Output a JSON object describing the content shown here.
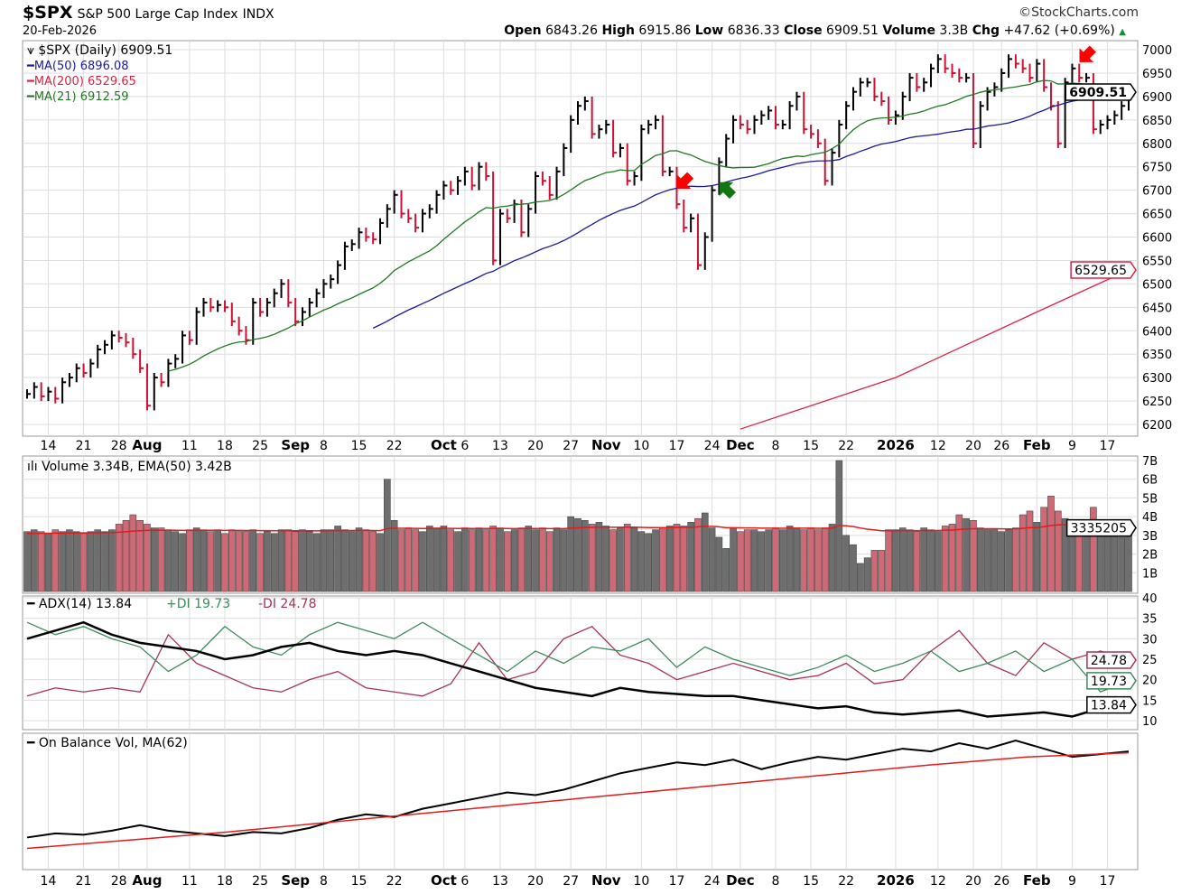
{
  "header": {
    "symbol": "$SPX",
    "name": "S&P 500 Large Cap Index",
    "exchange": "INDX",
    "date": "20-Feb-2026",
    "brand": "©StockCharts.com",
    "open_label": "Open",
    "open": "6843.26",
    "high_label": "High",
    "high": "6915.86",
    "low_label": "Low",
    "low": "6836.33",
    "close_label": "Close",
    "close": "6909.51",
    "volume_label": "Volume",
    "volume": "3.3B",
    "chg_label": "Chg",
    "chg": "+47.62 (+0.69%)"
  },
  "colors": {
    "up": "#000000",
    "down": "#cc1133",
    "ma50": "#1a1a99",
    "ma200": "#dd2244",
    "ma21": "#227722",
    "vol_up": "#6e6e6e",
    "vol_down": "#cd6a75",
    "vol_ema": "#e21b1b",
    "adx": "#000000",
    "plus_di": "#3c8a5a",
    "minus_di": "#a83254",
    "obv": "#000000",
    "obv_ma": "#e21b1b",
    "grid": "#dddddd"
  },
  "chart_data": [
    {
      "type": "bar",
      "panel": "price",
      "legend": {
        "title": "$SPX (Daily) 6909.51",
        "ma50": "MA(50) 6896.08",
        "ma200": "MA(200) 6529.65",
        "ma21": "MA(21) 6912.59"
      },
      "last_price_tag": "6909.51",
      "ma200_tag": "6529.65",
      "yticks": [
        7000,
        6950,
        6900,
        6850,
        6800,
        6750,
        6700,
        6650,
        6600,
        6550,
        6500,
        6450,
        6400,
        6350,
        6300,
        6250,
        6200
      ],
      "ylim": [
        6200,
        7000
      ],
      "grid": true,
      "months": [
        {
          "month": "Jul",
          "days": [
            9,
            10,
            11,
            14,
            15,
            16,
            17,
            18,
            21,
            22,
            23,
            24,
            25,
            28,
            29,
            30,
            31
          ],
          "close": [
            6265,
            6280,
            6260,
            6270,
            6255,
            6290,
            6300,
            6320,
            6310,
            6330,
            6360,
            6370,
            6390,
            6385,
            6375,
            6350,
            6320
          ],
          "volume": [
            3.2,
            3.3,
            3.2,
            3.1,
            3.3,
            3.2,
            3.3,
            3.2,
            3.1,
            3.2,
            3.3,
            3.2,
            3.3,
            3.6,
            3.8,
            4.1,
            3.8
          ]
        },
        {
          "month": "Aug",
          "days": [
            1,
            4,
            5,
            6,
            7,
            8,
            11,
            12,
            13,
            14,
            15,
            18,
            19,
            20,
            21,
            22,
            25,
            26,
            27,
            28,
            29
          ],
          "close": [
            6240,
            6300,
            6290,
            6330,
            6340,
            6390,
            6380,
            6440,
            6460,
            6450,
            6455,
            6450,
            6420,
            6400,
            6380,
            6460,
            6440,
            6460,
            6480,
            6500,
            6460
          ],
          "volume": [
            3.6,
            3.4,
            3.4,
            3.3,
            3.2,
            3.1,
            3.3,
            3.4,
            3.3,
            3.2,
            3.3,
            3.1,
            3.3,
            3.2,
            3.2,
            3.3,
            3.1,
            3.2,
            3.1,
            3.3,
            3.3
          ]
        },
        {
          "month": "Sep",
          "days": [
            2,
            3,
            4,
            5,
            8,
            9,
            10,
            11,
            12,
            15,
            16,
            17,
            18,
            19,
            22,
            23,
            24,
            25,
            26,
            29,
            30
          ],
          "close": [
            6420,
            6440,
            6460,
            6480,
            6500,
            6510,
            6540,
            6580,
            6585,
            6610,
            6600,
            6595,
            6630,
            6660,
            6690,
            6650,
            6640,
            6620,
            6650,
            6660,
            6690
          ],
          "volume": [
            3.2,
            3.3,
            3.2,
            3.1,
            3.3,
            3.3,
            3.5,
            3.3,
            3.2,
            3.4,
            3.3,
            3.2,
            3.1,
            6.0,
            3.8,
            3.3,
            3.4,
            3.3,
            3.2,
            3.5,
            3.4
          ]
        },
        {
          "month": "Oct",
          "days": [
            1,
            2,
            3,
            6,
            7,
            8,
            9,
            10,
            13,
            14,
            15,
            16,
            17,
            20,
            21,
            22,
            23,
            24,
            27,
            28,
            29,
            30,
            31
          ],
          "close": [
            6710,
            6700,
            6720,
            6740,
            6710,
            6750,
            6730,
            6550,
            6650,
            6640,
            6670,
            6610,
            6660,
            6730,
            6720,
            6690,
            6740,
            6790,
            6850,
            6880,
            6890,
            6820,
            6830
          ],
          "volume": [
            3.5,
            3.3,
            3.2,
            3.4,
            3.3,
            3.4,
            3.3,
            3.5,
            3.4,
            3.2,
            3.3,
            3.4,
            3.5,
            3.3,
            3.4,
            3.2,
            3.4,
            3.3,
            4.0,
            3.9,
            3.8,
            3.6,
            3.7
          ]
        },
        {
          "month": "Nov",
          "days": [
            3,
            4,
            5,
            6,
            7,
            10,
            11,
            12,
            13,
            14,
            17,
            18,
            19,
            20,
            21,
            24,
            25,
            26,
            28
          ],
          "close": [
            6840,
            6780,
            6790,
            6720,
            6730,
            6830,
            6840,
            6850,
            6740,
            6740,
            6670,
            6620,
            6640,
            6540,
            6600,
            6700,
            6760,
            6810,
            6850
          ],
          "volume": [
            3.5,
            3.3,
            3.4,
            3.6,
            3.4,
            3.2,
            3.1,
            3.3,
            3.4,
            3.5,
            3.6,
            3.5,
            3.7,
            3.9,
            4.2,
            3.4,
            2.9,
            2.3,
            3.4
          ]
        },
        {
          "month": "Dec",
          "days": [
            1,
            2,
            3,
            4,
            5,
            8,
            9,
            10,
            11,
            12,
            15,
            16,
            17,
            18,
            19,
            22,
            23,
            24,
            26,
            29,
            30,
            31
          ],
          "close": [
            6840,
            6830,
            6850,
            6860,
            6870,
            6840,
            6840,
            6880,
            6900,
            6830,
            6820,
            6800,
            6720,
            6780,
            6840,
            6880,
            6910,
            6930,
            6930,
            6900,
            6890,
            6850
          ],
          "volume": [
            3.2,
            3.3,
            3.3,
            3.2,
            3.3,
            3.4,
            3.3,
            3.5,
            3.4,
            3.3,
            3.4,
            3.3,
            3.4,
            3.6,
            7.0,
            3.0,
            2.5,
            1.5,
            1.8,
            2.2,
            2.2,
            3.3
          ]
        },
        {
          "month": "Jan",
          "days": [
            2,
            5,
            6,
            7,
            8,
            9,
            12,
            13,
            14,
            15,
            16,
            20,
            21,
            22,
            23,
            26,
            27,
            28,
            29,
            30
          ],
          "close": [
            6860,
            6900,
            6940,
            6920,
            6930,
            6960,
            6980,
            6960,
            6950,
            6940,
            6940,
            6800,
            6880,
            6910,
            6920,
            6950,
            6980,
            6970,
            6960,
            6940
          ],
          "volume": [
            3.3,
            3.4,
            3.3,
            3.2,
            3.4,
            3.3,
            3.2,
            3.5,
            3.6,
            4.1,
            3.9,
            3.8,
            3.4,
            3.3,
            3.3,
            3.2,
            3.3,
            3.4,
            4.1,
            4.3
          ]
        },
        {
          "month": "Feb",
          "days": [
            2,
            3,
            4,
            5,
            6,
            9,
            10,
            11,
            12,
            13,
            17,
            18,
            19,
            20
          ],
          "close": [
            6970,
            6920,
            6880,
            6800,
            6930,
            6960,
            6940,
            6940,
            6830,
            6840,
            6850,
            6860,
            6880,
            6909.51
          ],
          "volume": [
            3.7,
            4.5,
            5.1,
            4.3,
            3.9,
            3.4,
            3.5,
            3.6,
            4.5,
            3.4,
            3.3,
            3.1,
            2.9,
            3.34
          ]
        }
      ],
      "ma200_points": [
        {
          "month": "Dec",
          "day": 1,
          "value": 6190
        },
        {
          "month": "Jan",
          "day": 2,
          "value": 6300
        },
        {
          "month": "Jan",
          "day": 16,
          "value": 6370
        },
        {
          "month": "Feb",
          "day": 2,
          "value": 6440
        },
        {
          "month": "Feb",
          "day": 20,
          "value": 6529.65
        }
      ],
      "annotations": [
        {
          "month": "Nov",
          "day": 17,
          "color": "#ff0000",
          "dir": "down-left"
        },
        {
          "month": "Nov",
          "day": 25,
          "color": "#117711",
          "dir": "up-left"
        },
        {
          "month": "Feb",
          "day": 10,
          "color": "#ff0000",
          "dir": "down-left"
        }
      ]
    },
    {
      "type": "bar",
      "panel": "volume",
      "legend": "Volume 3.34B, EMA(50) 3.42B",
      "last_tag": "3335205",
      "yticks": [
        "7B",
        "6B",
        "5B",
        "4B",
        "3B",
        "2B",
        "1B"
      ],
      "ylim": [
        0,
        7
      ],
      "ema": 3.42
    },
    {
      "type": "line",
      "panel": "adx",
      "legend": {
        "adx": "ADX(14) 13.84",
        "plus": "+DI 19.73",
        "minus": "-DI 24.78"
      },
      "tags": {
        "adx": "13.84",
        "plus": "19.73",
        "minus": "24.78"
      },
      "yticks": [
        40,
        35,
        30,
        25,
        20,
        15,
        10
      ],
      "ylim": [
        10,
        40
      ],
      "series": [
        {
          "key": "minus",
          "values": [
            16,
            18,
            17,
            18,
            17,
            31,
            24,
            21,
            18,
            17,
            20,
            22,
            18,
            17,
            16,
            19,
            29,
            20,
            22,
            30,
            33,
            26,
            24,
            20,
            22,
            24,
            22,
            20,
            21,
            24,
            19,
            20,
            27,
            32,
            24,
            21,
            29,
            25,
            27,
            24.78
          ]
        },
        {
          "key": "plus",
          "values": [
            34,
            31,
            33,
            30,
            28,
            22,
            26,
            33,
            28,
            26,
            31,
            34,
            32,
            30,
            34,
            30,
            26,
            22,
            27,
            24,
            28,
            27,
            30,
            23,
            28,
            25,
            23,
            21,
            23,
            26,
            22,
            24,
            27,
            22,
            24,
            27,
            22,
            25,
            17,
            19.73
          ]
        },
        {
          "key": "adx",
          "values": [
            30,
            32,
            34,
            31,
            29,
            28,
            27,
            25,
            26,
            28,
            29,
            27,
            26,
            27,
            26,
            24,
            22,
            20,
            18,
            17,
            16,
            18,
            17,
            16.5,
            16,
            16,
            15,
            14,
            13,
            13.5,
            12,
            11.5,
            12,
            12.5,
            11,
            11.5,
            12,
            11,
            13,
            13.84
          ]
        }
      ]
    },
    {
      "type": "line",
      "panel": "obv",
      "legend": "On Balance Vol, MA(62)",
      "series": [
        {
          "key": "obv",
          "values": [
            5,
            8,
            7,
            10,
            14,
            10,
            8,
            6,
            9,
            8,
            12,
            18,
            22,
            20,
            26,
            30,
            34,
            38,
            36,
            40,
            46,
            52,
            56,
            60,
            58,
            62,
            55,
            60,
            64,
            62,
            66,
            70,
            68,
            74,
            70,
            76,
            70,
            64,
            66,
            68
          ]
        },
        {
          "key": "obv_ma",
          "values": [
            -3,
            3,
            9,
            16,
            23,
            30,
            37,
            44,
            51,
            58,
            64,
            67
          ]
        }
      ]
    }
  ],
  "xlabels": [
    {
      "label": "14",
      "month": "Jul",
      "day": 14,
      "bold": false
    },
    {
      "label": "21",
      "month": "Jul",
      "day": 21,
      "bold": false
    },
    {
      "label": "28",
      "month": "Jul",
      "day": 28,
      "bold": false
    },
    {
      "label": "Aug",
      "month": "Aug",
      "day": 1,
      "bold": true
    },
    {
      "label": "11",
      "month": "Aug",
      "day": 11,
      "bold": false
    },
    {
      "label": "18",
      "month": "Aug",
      "day": 18,
      "bold": false
    },
    {
      "label": "25",
      "month": "Aug",
      "day": 25,
      "bold": false
    },
    {
      "label": "Sep",
      "month": "Sep",
      "day": 2,
      "bold": true
    },
    {
      "label": "8",
      "month": "Sep",
      "day": 8,
      "bold": false
    },
    {
      "label": "15",
      "month": "Sep",
      "day": 15,
      "bold": false
    },
    {
      "label": "22",
      "month": "Sep",
      "day": 22,
      "bold": false
    },
    {
      "label": "Oct",
      "month": "Oct",
      "day": 1,
      "bold": true
    },
    {
      "label": "6",
      "month": "Oct",
      "day": 6,
      "bold": false
    },
    {
      "label": "13",
      "month": "Oct",
      "day": 13,
      "bold": false
    },
    {
      "label": "20",
      "month": "Oct",
      "day": 20,
      "bold": false
    },
    {
      "label": "27",
      "month": "Oct",
      "day": 27,
      "bold": false
    },
    {
      "label": "Nov",
      "month": "Nov",
      "day": 3,
      "bold": true
    },
    {
      "label": "10",
      "month": "Nov",
      "day": 10,
      "bold": false
    },
    {
      "label": "17",
      "month": "Nov",
      "day": 17,
      "bold": false
    },
    {
      "label": "24",
      "month": "Nov",
      "day": 24,
      "bold": false
    },
    {
      "label": "Dec",
      "month": "Dec",
      "day": 1,
      "bold": true
    },
    {
      "label": "8",
      "month": "Dec",
      "day": 8,
      "bold": false
    },
    {
      "label": "15",
      "month": "Dec",
      "day": 15,
      "bold": false
    },
    {
      "label": "22",
      "month": "Dec",
      "day": 22,
      "bold": false
    },
    {
      "label": "2026",
      "month": "Jan",
      "day": 2,
      "bold": true
    },
    {
      "label": "12",
      "month": "Jan",
      "day": 12,
      "bold": false
    },
    {
      "label": "20",
      "month": "Jan",
      "day": 20,
      "bold": false
    },
    {
      "label": "26",
      "month": "Jan",
      "day": 26,
      "bold": false
    },
    {
      "label": "Feb",
      "month": "Feb",
      "day": 2,
      "bold": true
    },
    {
      "label": "9",
      "month": "Feb",
      "day": 9,
      "bold": false
    },
    {
      "label": "17",
      "month": "Feb",
      "day": 17,
      "bold": false
    }
  ]
}
